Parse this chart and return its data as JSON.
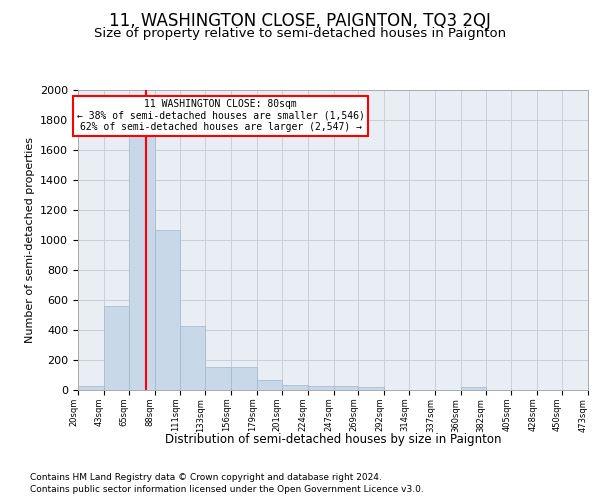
{
  "title": "11, WASHINGTON CLOSE, PAIGNTON, TQ3 2QJ",
  "subtitle": "Size of property relative to semi-detached houses in Paignton",
  "xlabel": "Distribution of semi-detached houses by size in Paignton",
  "ylabel": "Number of semi-detached properties",
  "footnote1": "Contains HM Land Registry data © Crown copyright and database right 2024.",
  "footnote2": "Contains public sector information licensed under the Open Government Licence v3.0.",
  "annotation_line1": "11 WASHINGTON CLOSE: 80sqm",
  "annotation_line2": "← 38% of semi-detached houses are smaller (1,546)",
  "annotation_line3": "62% of semi-detached houses are larger (2,547) →",
  "bar_left_edges": [
    20,
    43,
    65,
    88,
    111,
    133,
    156,
    179,
    201,
    224,
    247,
    269,
    292,
    314,
    337,
    360,
    382,
    405,
    428,
    450
  ],
  "bar_widths": [
    23,
    22,
    23,
    23,
    22,
    23,
    23,
    22,
    23,
    23,
    22,
    23,
    22,
    23,
    23,
    22,
    23,
    23,
    22,
    23
  ],
  "bar_heights": [
    25,
    560,
    1900,
    1070,
    430,
    155,
    155,
    70,
    35,
    30,
    30,
    20,
    0,
    0,
    0,
    20,
    0,
    0,
    0,
    0
  ],
  "tick_labels": [
    "20sqm",
    "43sqm",
    "65sqm",
    "88sqm",
    "111sqm",
    "133sqm",
    "156sqm",
    "179sqm",
    "201sqm",
    "224sqm",
    "247sqm",
    "269sqm",
    "292sqm",
    "314sqm",
    "337sqm",
    "360sqm",
    "382sqm",
    "405sqm",
    "428sqm",
    "450sqm",
    "473sqm"
  ],
  "bar_color": "#c8d8e8",
  "bar_edge_color": "#a0b8cc",
  "red_line_x": 80,
  "ylim": [
    0,
    2000
  ],
  "yticks": [
    0,
    200,
    400,
    600,
    800,
    1000,
    1200,
    1400,
    1600,
    1800,
    2000
  ],
  "grid_color": "#c8d0dc",
  "background_color": "#e8eef4",
  "title_fontsize": 12,
  "subtitle_fontsize": 9.5
}
